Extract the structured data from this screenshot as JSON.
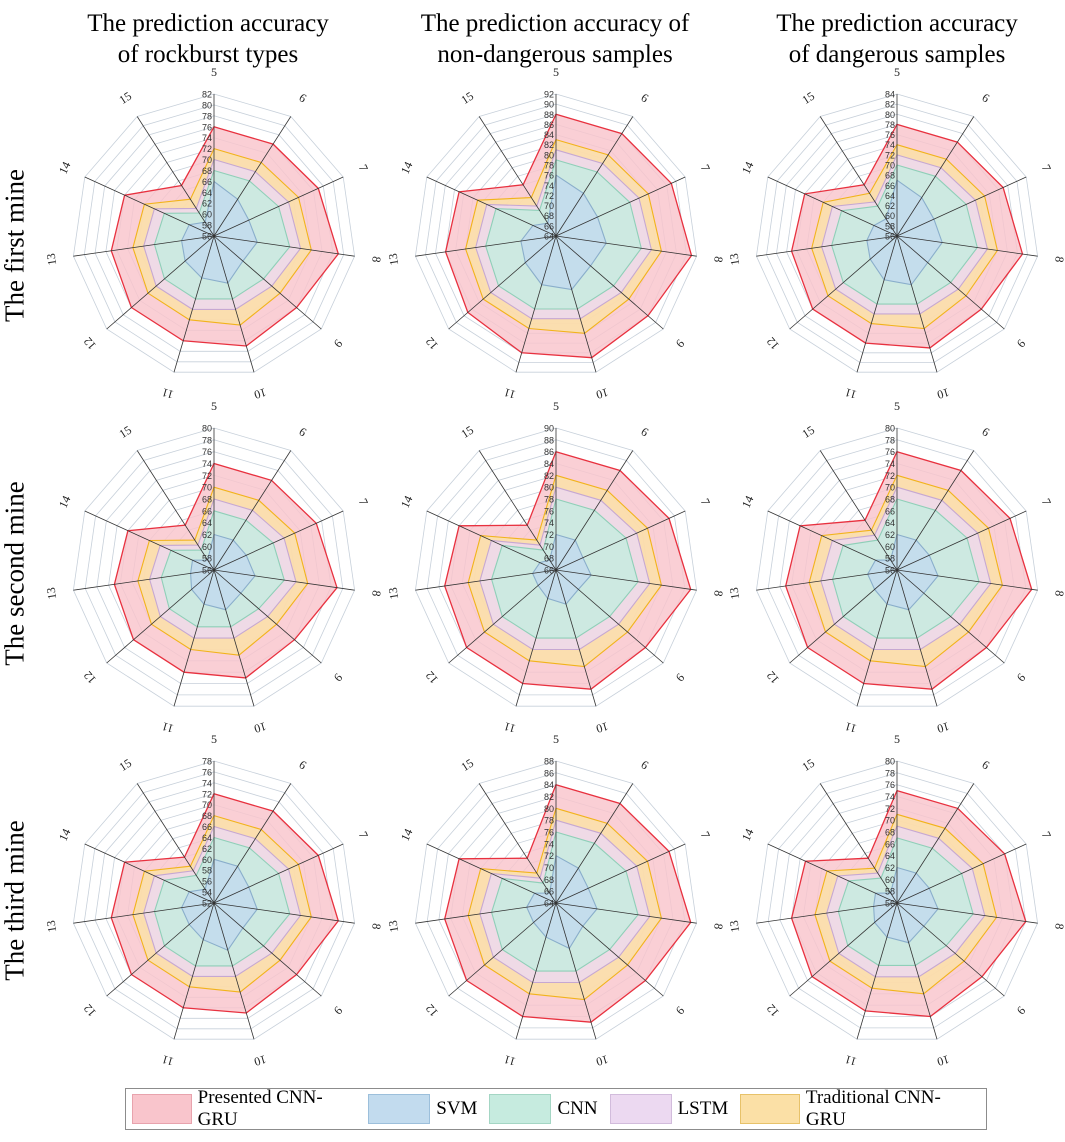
{
  "column_titles": [
    [
      "The prediction accuracy",
      "of rockburst types"
    ],
    [
      "The prediction accuracy of",
      "non-dangerous samples"
    ],
    [
      "The prediction accuracy",
      "of dangerous samples"
    ]
  ],
  "row_titles": [
    "The first mine",
    "The second mine",
    "The third mine"
  ],
  "legend": [
    {
      "name": "Presented CNN-GRU",
      "fill": "#f9c5cc",
      "stroke": "#e8313f"
    },
    {
      "name": "SVM",
      "fill": "#c2dbee",
      "stroke": "#8aaecb"
    },
    {
      "name": "CNN",
      "fill": "#c6ebdf",
      "stroke": "#8fcfb8"
    },
    {
      "name": "LSTM",
      "fill": "#ecd9f1",
      "stroke": "#c6a8d2"
    },
    {
      "name": "Traditional CNN-GRU",
      "fill": "#fbe0a6",
      "stroke": "#f2b31b"
    }
  ],
  "chart_data": [
    {
      "type": "radar",
      "title": "The prediction accuracy of rockburst types",
      "row": "The first mine",
      "categories": [
        "5",
        "6",
        "7",
        "8",
        "9",
        "10",
        "11",
        "12",
        "13",
        "14",
        "15"
      ],
      "ticks": [
        56,
        58,
        60,
        62,
        64,
        66,
        68,
        70,
        72,
        74,
        76,
        78,
        80,
        82
      ],
      "rmin": 56,
      "rmax": 82,
      "series": [
        {
          "name": "Presented CNN-GRU",
          "values": [
            76,
            76,
            77,
            79,
            76,
            77,
            76,
            76,
            75,
            74,
            67
          ]
        },
        {
          "name": "Traditional CNN-GRU",
          "values": [
            72,
            72,
            73,
            74,
            72,
            73,
            72,
            72,
            71,
            70,
            64
          ]
        },
        {
          "name": "LSTM",
          "values": [
            70,
            70,
            71,
            72,
            70,
            70,
            70,
            70,
            69,
            68,
            62
          ]
        },
        {
          "name": "CNN",
          "values": [
            68,
            68,
            69,
            70,
            68,
            68,
            68,
            68,
            67,
            66,
            61
          ]
        },
        {
          "name": "SVM",
          "values": [
            66,
            64,
            63,
            64,
            63,
            65,
            64,
            63,
            62,
            61,
            59
          ]
        }
      ]
    },
    {
      "type": "radar",
      "title": "The prediction accuracy of non-dangerous samples",
      "row": "The first mine",
      "categories": [
        "5",
        "6",
        "7",
        "8",
        "9",
        "10",
        "11",
        "12",
        "13",
        "14",
        "15"
      ],
      "ticks": [
        64,
        66,
        68,
        70,
        72,
        74,
        76,
        78,
        80,
        82,
        84,
        86,
        88,
        90,
        92
      ],
      "rmin": 64,
      "rmax": 92,
      "series": [
        {
          "name": "Presented CNN-GRU",
          "values": [
            88,
            88,
            89,
            91,
            88,
            89,
            88,
            87,
            86,
            85,
            76
          ]
        },
        {
          "name": "Traditional CNN-GRU",
          "values": [
            83,
            83,
            84,
            85,
            83,
            84,
            83,
            83,
            82,
            81,
            73
          ]
        },
        {
          "name": "LSTM",
          "values": [
            81,
            81,
            82,
            83,
            81,
            81,
            81,
            81,
            80,
            79,
            71
          ]
        },
        {
          "name": "CNN",
          "values": [
            79,
            79,
            80,
            81,
            79,
            79,
            79,
            79,
            78,
            77,
            70
          ]
        },
        {
          "name": "SVM",
          "values": [
            76,
            74,
            73,
            74,
            73,
            75,
            74,
            72,
            71,
            69,
            67
          ]
        }
      ]
    },
    {
      "type": "radar",
      "title": "The prediction accuracy of dangerous samples",
      "row": "The first mine",
      "categories": [
        "5",
        "6",
        "7",
        "8",
        "9",
        "10",
        "11",
        "12",
        "13",
        "14",
        "15"
      ],
      "ticks": [
        56,
        58,
        60,
        62,
        64,
        66,
        68,
        70,
        72,
        74,
        76,
        78,
        80,
        82,
        84
      ],
      "rmin": 56,
      "rmax": 84,
      "series": [
        {
          "name": "Presented CNN-GRU",
          "values": [
            78,
            78,
            79,
            81,
            78,
            79,
            78,
            78,
            77,
            76,
            68
          ]
        },
        {
          "name": "Traditional CNN-GRU",
          "values": [
            74,
            74,
            75,
            76,
            74,
            75,
            74,
            74,
            73,
            72,
            66
          ]
        },
        {
          "name": "LSTM",
          "values": [
            72,
            72,
            73,
            74,
            72,
            72,
            72,
            72,
            71,
            70,
            64
          ]
        },
        {
          "name": "CNN",
          "values": [
            70,
            70,
            71,
            72,
            70,
            70,
            70,
            70,
            69,
            68,
            63
          ]
        },
        {
          "name": "SVM",
          "values": [
            67,
            65,
            64,
            65,
            64,
            66,
            65,
            63,
            62,
            61,
            60
          ]
        }
      ]
    },
    {
      "type": "radar",
      "title": "The prediction accuracy of rockburst types",
      "row": "The second mine",
      "categories": [
        "5",
        "6",
        "7",
        "8",
        "9",
        "10",
        "11",
        "12",
        "13",
        "14",
        "15"
      ],
      "ticks": [
        56,
        58,
        60,
        62,
        64,
        66,
        68,
        70,
        72,
        74,
        76,
        78,
        80
      ],
      "rmin": 56,
      "rmax": 80,
      "series": [
        {
          "name": "Presented CNN-GRU",
          "values": [
            74,
            74,
            75,
            77,
            74,
            75,
            74,
            74,
            73,
            72,
            65
          ]
        },
        {
          "name": "Traditional CNN-GRU",
          "values": [
            70,
            70,
            71,
            72,
            70,
            71,
            70,
            70,
            69,
            68,
            62
          ]
        },
        {
          "name": "LSTM",
          "values": [
            68,
            68,
            69,
            70,
            68,
            68,
            68,
            68,
            67,
            66,
            61
          ]
        },
        {
          "name": "CNN",
          "values": [
            66,
            66,
            67,
            68,
            66,
            66,
            66,
            66,
            65,
            64,
            60
          ]
        },
        {
          "name": "SVM",
          "values": [
            62,
            62,
            62,
            63,
            62,
            63,
            62,
            61,
            60,
            60,
            58
          ]
        }
      ]
    },
    {
      "type": "radar",
      "title": "The prediction accuracy of non-dangerous samples",
      "row": "The second mine",
      "categories": [
        "5",
        "6",
        "7",
        "8",
        "9",
        "10",
        "11",
        "12",
        "13",
        "14",
        "15"
      ],
      "ticks": [
        66,
        68,
        70,
        72,
        74,
        76,
        78,
        80,
        82,
        84,
        86,
        88,
        90
      ],
      "rmin": 66,
      "rmax": 90,
      "series": [
        {
          "name": "Presented CNN-GRU",
          "values": [
            86,
            86,
            87,
            89,
            86,
            87,
            86,
            86,
            85,
            84,
            75
          ]
        },
        {
          "name": "Traditional CNN-GRU",
          "values": [
            82,
            82,
            83,
            84,
            82,
            83,
            82,
            82,
            81,
            80,
            72
          ]
        },
        {
          "name": "LSTM",
          "values": [
            80,
            80,
            81,
            82,
            80,
            80,
            80,
            80,
            79,
            78,
            71
          ]
        },
        {
          "name": "CNN",
          "values": [
            78,
            78,
            79,
            80,
            78,
            78,
            78,
            78,
            77,
            76,
            70
          ]
        },
        {
          "name": "SVM",
          "values": [
            72,
            72,
            71,
            72,
            71,
            72,
            71,
            70,
            70,
            69,
            68
          ]
        }
      ]
    },
    {
      "type": "radar",
      "title": "The prediction accuracy of dangerous samples",
      "row": "The second mine",
      "categories": [
        "5",
        "6",
        "7",
        "8",
        "9",
        "10",
        "11",
        "12",
        "13",
        "14",
        "15"
      ],
      "ticks": [
        56,
        58,
        60,
        62,
        64,
        66,
        68,
        70,
        72,
        74,
        76,
        78,
        80
      ],
      "rmin": 56,
      "rmax": 80,
      "series": [
        {
          "name": "Presented CNN-GRU",
          "values": [
            76,
            76,
            77,
            79,
            76,
            77,
            76,
            76,
            75,
            74,
            66
          ]
        },
        {
          "name": "Traditional CNN-GRU",
          "values": [
            72,
            72,
            73,
            74,
            72,
            73,
            72,
            72,
            71,
            70,
            64
          ]
        },
        {
          "name": "LSTM",
          "values": [
            70,
            70,
            71,
            72,
            70,
            70,
            70,
            70,
            69,
            68,
            63
          ]
        },
        {
          "name": "CNN",
          "values": [
            68,
            68,
            69,
            70,
            68,
            68,
            68,
            68,
            67,
            66,
            62
          ]
        },
        {
          "name": "SVM",
          "values": [
            62,
            62,
            62,
            63,
            62,
            63,
            62,
            61,
            61,
            60,
            58
          ]
        }
      ]
    },
    {
      "type": "radar",
      "title": "The prediction accuracy of rockburst types",
      "row": "The third mine",
      "categories": [
        "5",
        "6",
        "7",
        "8",
        "9",
        "10",
        "11",
        "12",
        "13",
        "14",
        "15"
      ],
      "ticks": [
        52,
        54,
        56,
        58,
        60,
        62,
        64,
        66,
        68,
        70,
        72,
        74,
        76,
        78
      ],
      "rmin": 52,
      "rmax": 78,
      "series": [
        {
          "name": "Presented CNN-GRU",
          "values": [
            72,
            72,
            73,
            75,
            72,
            73,
            72,
            72,
            71,
            70,
            62
          ]
        },
        {
          "name": "Traditional CNN-GRU",
          "values": [
            68,
            68,
            69,
            70,
            68,
            69,
            68,
            68,
            67,
            66,
            60
          ]
        },
        {
          "name": "LSTM",
          "values": [
            66,
            66,
            67,
            68,
            66,
            66,
            66,
            66,
            65,
            64,
            59
          ]
        },
        {
          "name": "CNN",
          "values": [
            64,
            64,
            65,
            66,
            64,
            64,
            64,
            64,
            63,
            62,
            58
          ]
        },
        {
          "name": "SVM",
          "values": [
            60,
            60,
            59,
            60,
            59,
            61,
            59,
            58,
            58,
            57,
            55
          ]
        }
      ]
    },
    {
      "type": "radar",
      "title": "The prediction accuracy of non-dangerous samples",
      "row": "The third mine",
      "categories": [
        "5",
        "6",
        "7",
        "8",
        "9",
        "10",
        "11",
        "12",
        "13",
        "14",
        "15"
      ],
      "ticks": [
        64,
        66,
        68,
        70,
        72,
        74,
        76,
        78,
        80,
        82,
        84,
        86,
        88
      ],
      "rmin": 64,
      "rmax": 88,
      "series": [
        {
          "name": "Presented CNN-GRU",
          "values": [
            84,
            84,
            85,
            87,
            84,
            85,
            84,
            84,
            83,
            82,
            73
          ]
        },
        {
          "name": "Traditional CNN-GRU",
          "values": [
            80,
            80,
            81,
            82,
            80,
            81,
            80,
            80,
            79,
            78,
            70
          ]
        },
        {
          "name": "LSTM",
          "values": [
            78,
            78,
            79,
            80,
            78,
            78,
            78,
            78,
            77,
            76,
            69
          ]
        },
        {
          "name": "CNN",
          "values": [
            76,
            76,
            77,
            78,
            76,
            76,
            76,
            76,
            75,
            74,
            68
          ]
        },
        {
          "name": "SVM",
          "values": [
            72,
            71,
            70,
            71,
            70,
            72,
            70,
            69,
            69,
            68,
            66
          ]
        }
      ]
    },
    {
      "type": "radar",
      "title": "The prediction accuracy of dangerous samples",
      "row": "The third mine",
      "categories": [
        "5",
        "6",
        "7",
        "8",
        "9",
        "10",
        "11",
        "12",
        "13",
        "14",
        "15"
      ],
      "ticks": [
        56,
        58,
        60,
        62,
        64,
        66,
        68,
        70,
        72,
        74,
        76,
        78,
        80
      ],
      "rmin": 56,
      "rmax": 80,
      "series": [
        {
          "name": "Presented CNN-GRU",
          "values": [
            75,
            75,
            76,
            78,
            75,
            76,
            75,
            75,
            74,
            73,
            65
          ]
        },
        {
          "name": "Traditional CNN-GRU",
          "values": [
            71,
            71,
            72,
            73,
            71,
            72,
            71,
            71,
            70,
            69,
            63
          ]
        },
        {
          "name": "LSTM",
          "values": [
            69,
            69,
            70,
            71,
            69,
            69,
            69,
            69,
            68,
            67,
            62
          ]
        },
        {
          "name": "CNN",
          "values": [
            67,
            67,
            68,
            69,
            67,
            67,
            67,
            67,
            66,
            65,
            61
          ]
        },
        {
          "name": "SVM",
          "values": [
            62,
            62,
            62,
            63,
            62,
            63,
            62,
            61,
            60,
            60,
            58
          ]
        }
      ]
    }
  ]
}
